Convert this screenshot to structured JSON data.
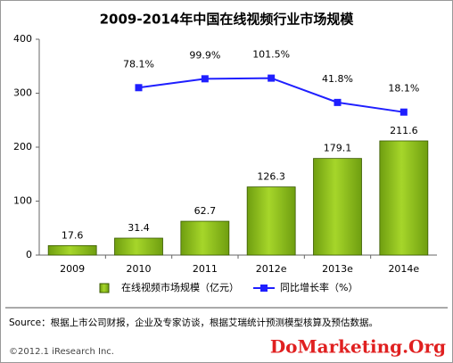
{
  "chart_data": {
    "type": "bar",
    "title": "2009-2014年中国在线视频行业市场规模",
    "categories": [
      "2009",
      "2010",
      "2011",
      "2012e",
      "2013e",
      "2014e"
    ],
    "series": [
      {
        "name": "在线视频市场规模（亿元）",
        "type": "bar",
        "color": "#8dc21f",
        "values": [
          17.6,
          31.4,
          62.7,
          126.3,
          179.1,
          211.6
        ]
      },
      {
        "name": "同比增长率（%）",
        "type": "line",
        "axis": "y2",
        "color": "#1f1fff",
        "values": [
          null,
          78.1,
          99.9,
          101.5,
          41.8,
          18.1
        ],
        "value_labels": [
          null,
          "78.1%",
          "99.9%",
          "101.5%",
          "41.8%",
          "18.1%"
        ]
      }
    ],
    "ylim": [
      0,
      400
    ],
    "yticks": [
      0,
      100,
      200,
      300,
      400
    ],
    "y2lim": [
      -333,
      197
    ],
    "grid": false,
    "legend": "bottom",
    "source": "Source：根据上市公司财报，企业及专家访谈，根据艾瑞统计预测模型核算及预估数据。",
    "copyright": "©2012.1 iResearch Inc.",
    "watermark": "DoMarketing.Org"
  }
}
